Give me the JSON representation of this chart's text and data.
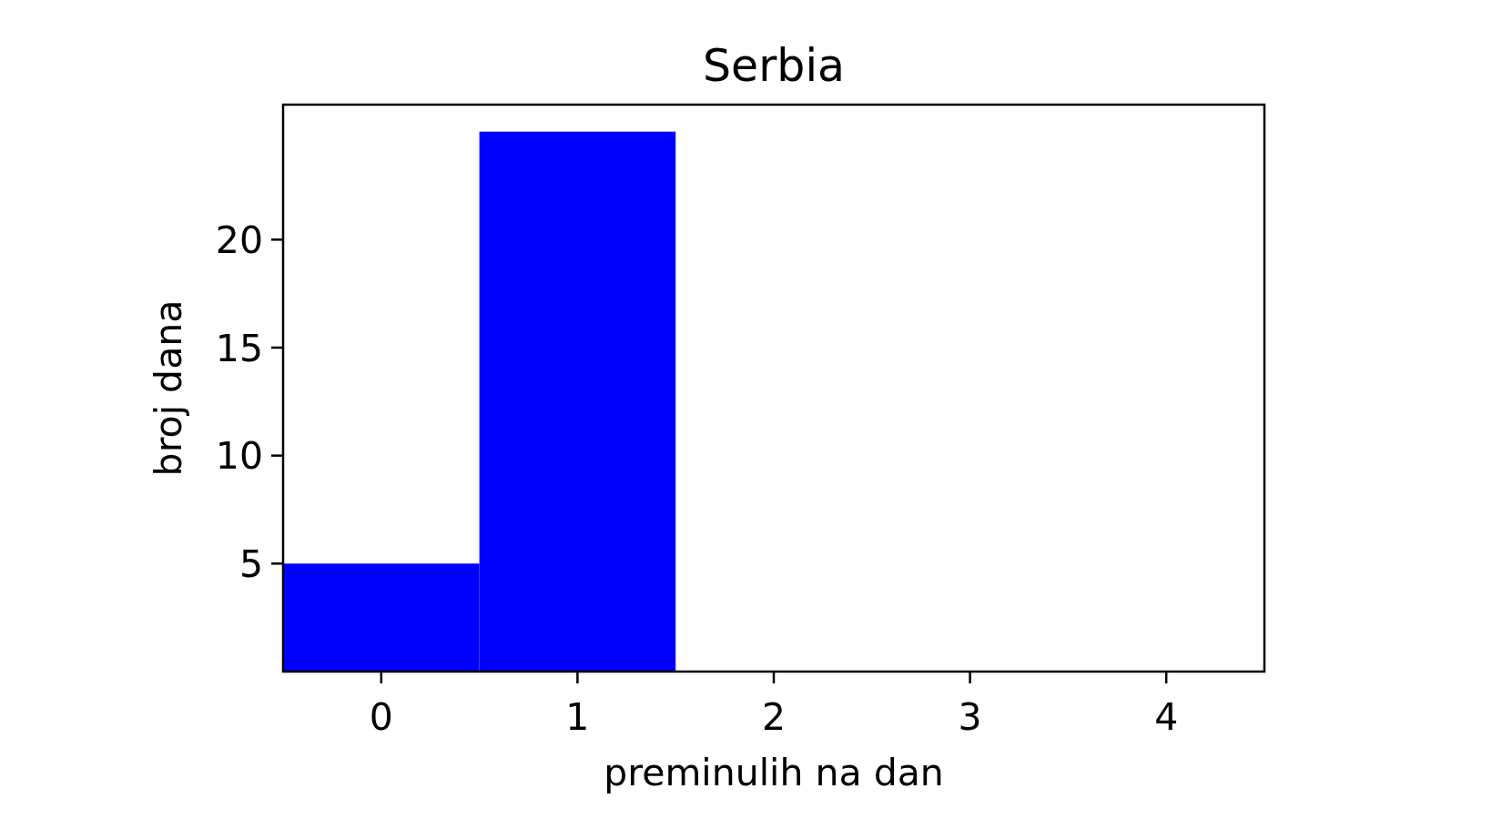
{
  "chart_data": {
    "type": "histogram",
    "title": "Serbia",
    "xlabel": "preminulih na dan",
    "ylabel": "broj dana",
    "bins": [
      -0.5,
      0.5,
      1.5
    ],
    "values": [
      5,
      25
    ],
    "color": "#0000ff",
    "xlim": [
      -0.5,
      4.5
    ],
    "xticks": [
      0,
      1,
      2,
      3,
      4
    ],
    "ylim": [
      0,
      26.25
    ],
    "yticks": [
      5,
      10,
      15,
      20
    ],
    "grid": false
  }
}
